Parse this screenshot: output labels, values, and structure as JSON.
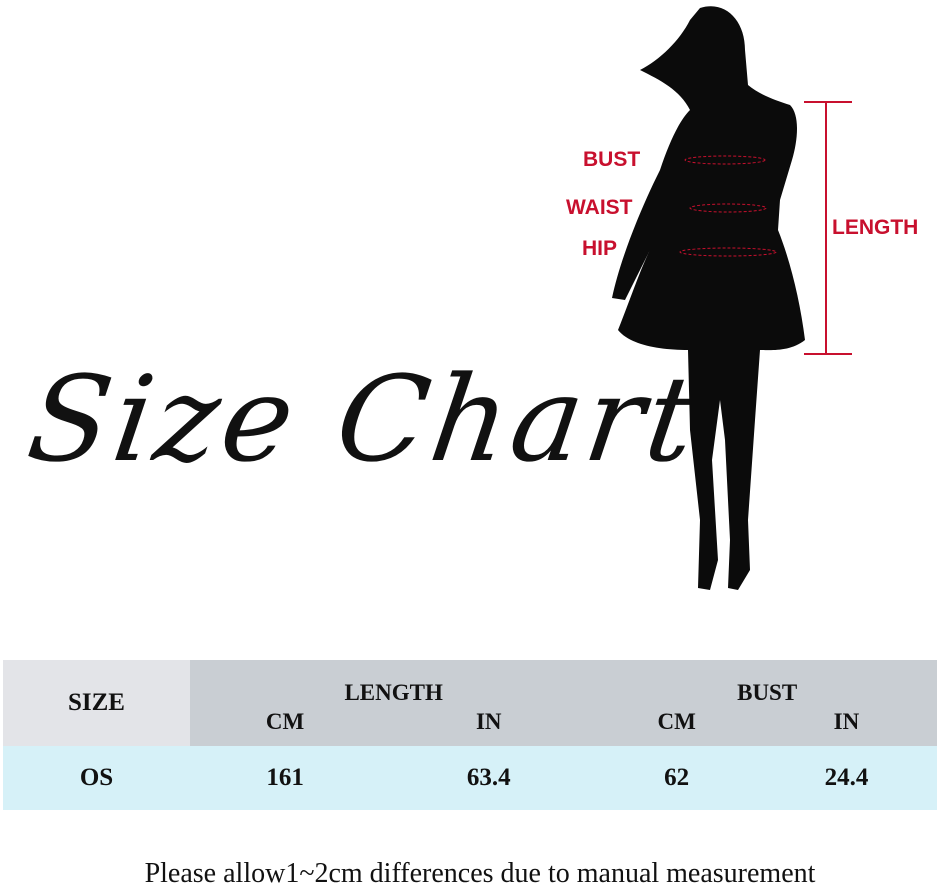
{
  "title": "Size Chart",
  "figure_labels": {
    "bust": "BUST",
    "waist": "WAIST",
    "hip": "HIP",
    "length": "LENGTH"
  },
  "colors": {
    "label_red": "#c8102e",
    "header_gray": "#c9ced3",
    "size_header": "#e3e4e8",
    "row_blue": "#d6f1f8"
  },
  "table": {
    "size_header": "SIZE",
    "groups": [
      "LENGTH",
      "BUST"
    ],
    "units": [
      "CM",
      "IN",
      "CM",
      "IN"
    ],
    "rows": [
      {
        "size": "OS",
        "values": [
          "161",
          "63.4",
          "62",
          "24.4"
        ]
      }
    ]
  },
  "note": "Please allow1~2cm differences due to manual measurement"
}
